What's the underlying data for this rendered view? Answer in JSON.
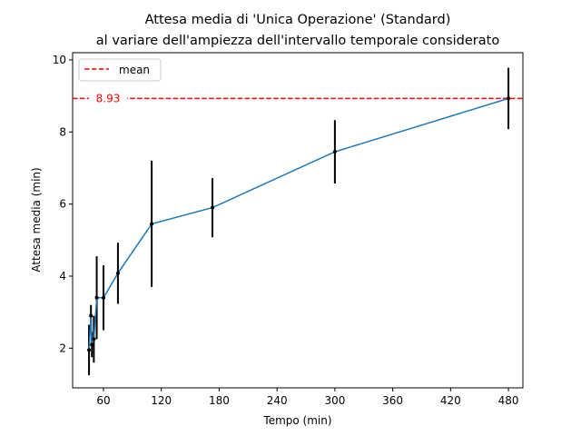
{
  "chart_data": {
    "type": "line",
    "title_line1": "Attesa media di 'Unica Operazione' (Standard)",
    "title_line2": "al variare dell'ampiezza dell'intervallo temporale considerato",
    "xlabel": "Tempo (min)",
    "ylabel": "Attesa media (min)",
    "xlim": [
      28,
      495
    ],
    "ylim": [
      0.9,
      10.2
    ],
    "xticks": [
      60,
      120,
      180,
      240,
      300,
      360,
      420,
      480
    ],
    "yticks": [
      2,
      4,
      6,
      8,
      10
    ],
    "grid": false,
    "legend": {
      "placement": "top-left",
      "entries": [
        "mean"
      ]
    },
    "mean": {
      "value": 8.93,
      "label": "8.93",
      "color": "#ff0000"
    },
    "series": [
      {
        "color": "#1f77b4",
        "x": [
          45,
          47,
          48,
          50,
          53,
          60,
          75,
          110,
          173,
          300,
          480
        ],
        "y": [
          1.95,
          2.9,
          2.1,
          2.25,
          3.4,
          3.4,
          4.08,
          5.45,
          5.9,
          7.45,
          8.93
        ],
        "err": [
          0.7,
          0.3,
          0.35,
          0.65,
          1.15,
          0.9,
          0.85,
          1.75,
          0.82,
          0.88,
          0.85
        ]
      }
    ],
    "errorbar_color": "#000000"
  }
}
